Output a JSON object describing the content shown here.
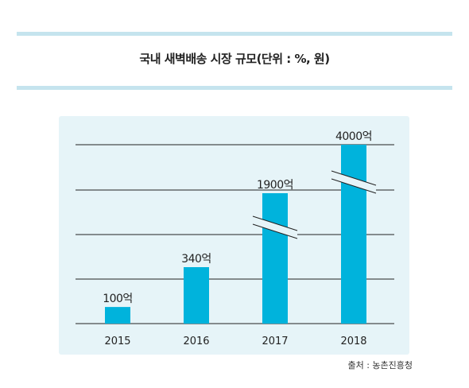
{
  "header": {
    "title": "국내 새벽배송 시장 규모(단위 : %, 원)"
  },
  "footer": {
    "source": "출처 : 농촌진흥청"
  },
  "colors": {
    "bar": "#00b3dc",
    "panel": "#e6f4f8",
    "rule": "#c5e4ee",
    "gridline": "#222222"
  },
  "chart_data": {
    "type": "bar",
    "categories": [
      "2015",
      "2016",
      "2017",
      "2018"
    ],
    "values": [
      100,
      340,
      1900,
      4000
    ],
    "data_labels": [
      "100억",
      "340억",
      "1900억",
      "4000억"
    ],
    "axis_break": true,
    "grid": true,
    "legend": "none"
  }
}
